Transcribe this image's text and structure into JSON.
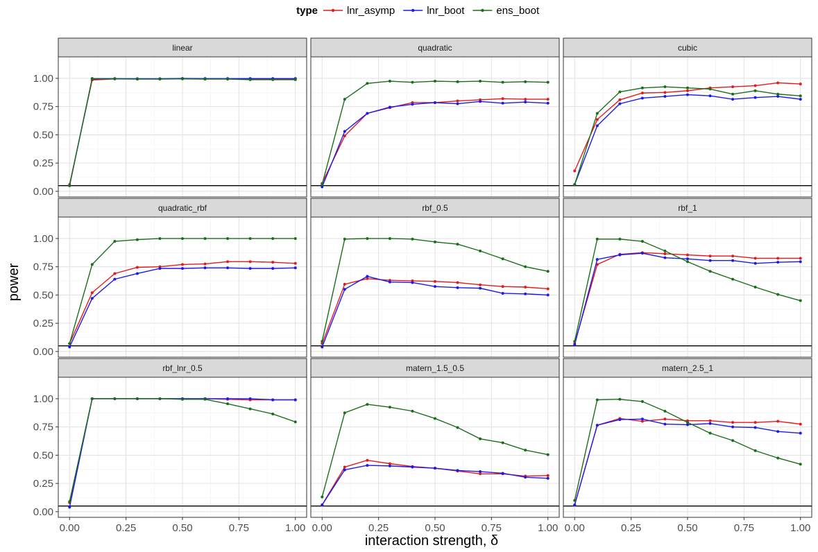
{
  "legend": {
    "title": "type"
  },
  "axes": {
    "xlabel": "interaction strength, δ",
    "ylabel": "power"
  },
  "x_ticks": [
    "0.00",
    "0.25",
    "0.50",
    "0.75",
    "1.00"
  ],
  "y_ticks": [
    "0.00",
    "0.25",
    "0.50",
    "0.75",
    "1.00"
  ],
  "chart_data": {
    "type": "line",
    "facets": [
      "linear",
      "quadratic",
      "cubic",
      "quadratic_rbf",
      "rbf_0.5",
      "rbf_1",
      "rbf_lnr_0.5",
      "matern_1.5_0.5",
      "matern_2.5_1"
    ],
    "x": [
      0,
      0.1,
      0.2,
      0.3,
      0.4,
      0.5,
      0.6,
      0.7,
      0.8,
      0.9,
      1.0
    ],
    "xlim": [
      -0.05,
      1.05
    ],
    "ylim": [
      -0.05,
      1.19
    ],
    "reference_line_y": 0.05,
    "grid": true,
    "legend_position": "top",
    "series": [
      {
        "name": "lnr_asymp",
        "color": "#e41a1c"
      },
      {
        "name": "lnr_boot",
        "color": "#1a1aee"
      },
      {
        "name": "ens_boot",
        "color": "#1a6e1a"
      }
    ],
    "values": {
      "linear": {
        "lnr_asymp": [
          0.06,
          0.985,
          0.995,
          0.995,
          0.995,
          0.997,
          0.995,
          0.995,
          0.995,
          0.995,
          0.995
        ],
        "lnr_boot": [
          0.05,
          0.998,
          0.998,
          0.997,
          0.997,
          0.999,
          0.998,
          0.998,
          0.998,
          0.998,
          0.998
        ],
        "ens_boot": [
          0.05,
          0.995,
          0.995,
          0.993,
          0.993,
          0.995,
          0.993,
          0.993,
          0.988,
          0.988,
          0.988
        ]
      },
      "quadratic": {
        "lnr_asymp": [
          0.07,
          0.49,
          0.69,
          0.74,
          0.785,
          0.785,
          0.8,
          0.81,
          0.82,
          0.815,
          0.815
        ],
        "lnr_boot": [
          0.04,
          0.53,
          0.69,
          0.745,
          0.77,
          0.785,
          0.775,
          0.795,
          0.78,
          0.79,
          0.78
        ],
        "ens_boot": [
          0.06,
          0.815,
          0.955,
          0.975,
          0.965,
          0.975,
          0.97,
          0.975,
          0.965,
          0.97,
          0.965
        ]
      },
      "cubic": {
        "lnr_asymp": [
          0.18,
          0.635,
          0.81,
          0.87,
          0.875,
          0.89,
          0.915,
          0.925,
          0.935,
          0.96,
          0.95
        ],
        "lnr_boot": [
          0.06,
          0.58,
          0.775,
          0.825,
          0.84,
          0.855,
          0.845,
          0.815,
          0.83,
          0.84,
          0.815
        ],
        "ens_boot": [
          0.06,
          0.69,
          0.88,
          0.915,
          0.925,
          0.915,
          0.905,
          0.86,
          0.89,
          0.86,
          0.845
        ]
      },
      "quadratic_rbf": {
        "lnr_asymp": [
          0.07,
          0.52,
          0.69,
          0.745,
          0.75,
          0.77,
          0.775,
          0.795,
          0.795,
          0.79,
          0.78
        ],
        "lnr_boot": [
          0.04,
          0.47,
          0.64,
          0.69,
          0.735,
          0.735,
          0.74,
          0.74,
          0.735,
          0.735,
          0.74
        ],
        "ens_boot": [
          0.07,
          0.77,
          0.975,
          0.99,
          1.0,
          1.0,
          1.0,
          1.0,
          1.0,
          1.0,
          1.0
        ]
      },
      "rbf_0.5": {
        "lnr_asymp": [
          0.07,
          0.595,
          0.645,
          0.63,
          0.625,
          0.62,
          0.61,
          0.59,
          0.575,
          0.57,
          0.555
        ],
        "lnr_boot": [
          0.04,
          0.55,
          0.665,
          0.615,
          0.61,
          0.575,
          0.565,
          0.56,
          0.515,
          0.51,
          0.5
        ],
        "ens_boot": [
          0.09,
          0.995,
          1.0,
          1.0,
          0.995,
          0.97,
          0.95,
          0.89,
          0.82,
          0.75,
          0.71
        ]
      },
      "rbf_1": {
        "lnr_asymp": [
          0.07,
          0.77,
          0.86,
          0.875,
          0.865,
          0.855,
          0.845,
          0.845,
          0.825,
          0.825,
          0.825
        ],
        "lnr_boot": [
          0.06,
          0.815,
          0.855,
          0.87,
          0.83,
          0.82,
          0.805,
          0.805,
          0.78,
          0.79,
          0.795
        ],
        "ens_boot": [
          0.09,
          0.995,
          0.995,
          0.975,
          0.89,
          0.795,
          0.71,
          0.64,
          0.57,
          0.505,
          0.45
        ]
      },
      "rbf_lnr_0.5": {
        "lnr_asymp": [
          0.08,
          1.0,
          1.0,
          1.0,
          1.0,
          1.0,
          1.0,
          0.995,
          0.99,
          0.99,
          0.99
        ],
        "lnr_boot": [
          0.04,
          1.0,
          1.0,
          1.0,
          1.0,
          1.0,
          1.0,
          1.0,
          1.0,
          0.99,
          0.99
        ],
        "ens_boot": [
          0.09,
          1.0,
          1.0,
          1.0,
          1.0,
          0.995,
          0.995,
          0.955,
          0.91,
          0.865,
          0.795
        ]
      },
      "matern_1.5_0.5": {
        "lnr_asymp": [
          0.06,
          0.395,
          0.455,
          0.425,
          0.4,
          0.385,
          0.36,
          0.335,
          0.335,
          0.315,
          0.32
        ],
        "lnr_boot": [
          0.06,
          0.37,
          0.41,
          0.405,
          0.395,
          0.385,
          0.365,
          0.355,
          0.34,
          0.305,
          0.295
        ],
        "ens_boot": [
          0.13,
          0.875,
          0.95,
          0.925,
          0.89,
          0.825,
          0.745,
          0.645,
          0.61,
          0.545,
          0.505
        ]
      },
      "matern_2.5_1": {
        "lnr_asymp": [
          0.06,
          0.765,
          0.825,
          0.8,
          0.82,
          0.805,
          0.805,
          0.79,
          0.79,
          0.8,
          0.775
        ],
        "lnr_boot": [
          0.06,
          0.765,
          0.815,
          0.82,
          0.775,
          0.77,
          0.78,
          0.75,
          0.745,
          0.71,
          0.695
        ],
        "ens_boot": [
          0.1,
          0.99,
          0.995,
          0.975,
          0.89,
          0.79,
          0.695,
          0.63,
          0.54,
          0.475,
          0.42
        ]
      }
    }
  }
}
